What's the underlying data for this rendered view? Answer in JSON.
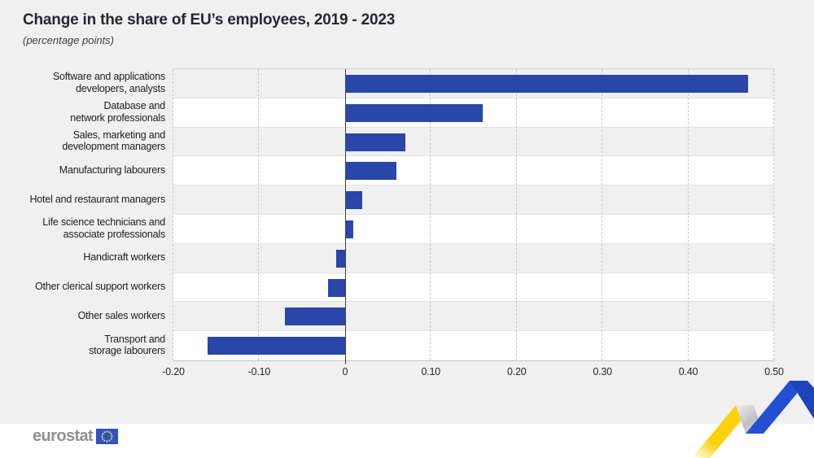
{
  "header": {
    "title": "Change in the share of EU’s employees, 2019 - 2023",
    "subtitle": "(percentage points)"
  },
  "chart_data": {
    "type": "bar",
    "orientation": "horizontal",
    "title": "Change in the share of EU’s employees, 2019 - 2023",
    "subtitle": "(percentage points)",
    "categories": [
      "Software and applications\ndevelopers, analysts",
      "Database and\nnetwork professionals",
      "Sales, marketing and\ndevelopment managers",
      "Manufacturing labourers",
      "Hotel and restaurant managers",
      "Life science technicians and\nassociate professionals",
      "Handicraft workers",
      "Other clerical support workers",
      "Other sales workers",
      "Transport and\nstorage labourers"
    ],
    "values": [
      0.47,
      0.16,
      0.07,
      0.06,
      0.02,
      0.01,
      -0.01,
      -0.02,
      -0.07,
      -0.16
    ],
    "xlim": [
      -0.2,
      0.5
    ],
    "xticks": [
      -0.2,
      -0.1,
      0,
      0.1,
      0.2,
      0.3,
      0.4,
      0.5
    ],
    "xtick_labels": [
      "-0.20",
      "-0.10",
      "0",
      "0.10",
      "0.20",
      "0.30",
      "0.40",
      "0.50"
    ],
    "grid": "vertical-dashed",
    "legend": "none",
    "row_band_colors": [
      "#f0f0f0",
      "#ffffff"
    ]
  },
  "footer": {
    "logo_text": "eurostat"
  },
  "colors": {
    "background": "#f0f0f0",
    "footer_background": "#ffffff",
    "bar": "#2a46a8",
    "zero_line": "#3c4147",
    "gridline": "#c9c9c9",
    "title_text": "#232834",
    "label_text": "#1d1d1b",
    "logo_text": "#8e9093",
    "flag_blue": "#2c52c8",
    "star_yellow": "#ffd617",
    "ribbon_yellow": "#fdd109",
    "ribbon_blue_rise": "#2150d2",
    "ribbon_blue_fall": "#1a44bb",
    "ribbon_fold_light": "#efefef",
    "ribbon_fold_dark": "#bfbfbf"
  }
}
